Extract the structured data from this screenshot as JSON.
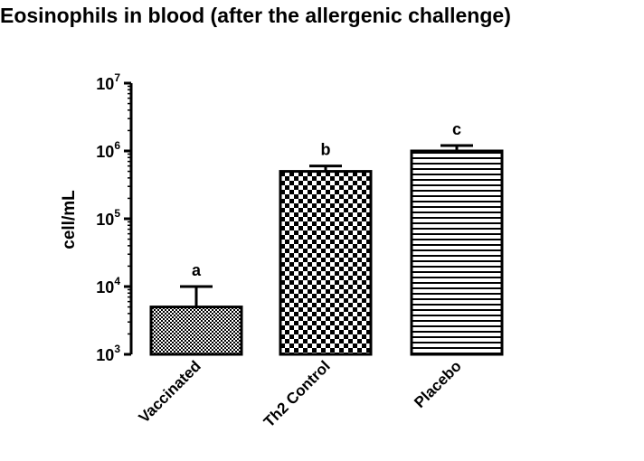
{
  "chart_data": {
    "type": "bar",
    "title": "Eosinophils in blood (after the allergenic challenge)",
    "xlabel": "",
    "ylabel": "cell/mL",
    "y_scale": "log",
    "ylim": [
      1000,
      10000000
    ],
    "y_ticks": [
      {
        "value": 1000,
        "base": "10",
        "exp": "3"
      },
      {
        "value": 10000,
        "base": "10",
        "exp": "4"
      },
      {
        "value": 100000,
        "base": "10",
        "exp": "5"
      },
      {
        "value": 1000000,
        "base": "10",
        "exp": "6"
      },
      {
        "value": 10000000,
        "base": "10",
        "exp": "7"
      }
    ],
    "categories": [
      "Vaccinated",
      "Th2 Control",
      "Placebo"
    ],
    "values": [
      5000,
      500000,
      1000000
    ],
    "error_upper": [
      10000,
      600000,
      1200000
    ],
    "significance_labels": [
      "a",
      "b",
      "c"
    ],
    "bar_patterns": [
      "fine-checker",
      "checkerboard",
      "horizontal-stripes"
    ],
    "grid": false,
    "legend": "none"
  },
  "colors": {
    "bar_stroke": "#000000",
    "bar_pattern": "#000000",
    "background": "#ffffff"
  }
}
